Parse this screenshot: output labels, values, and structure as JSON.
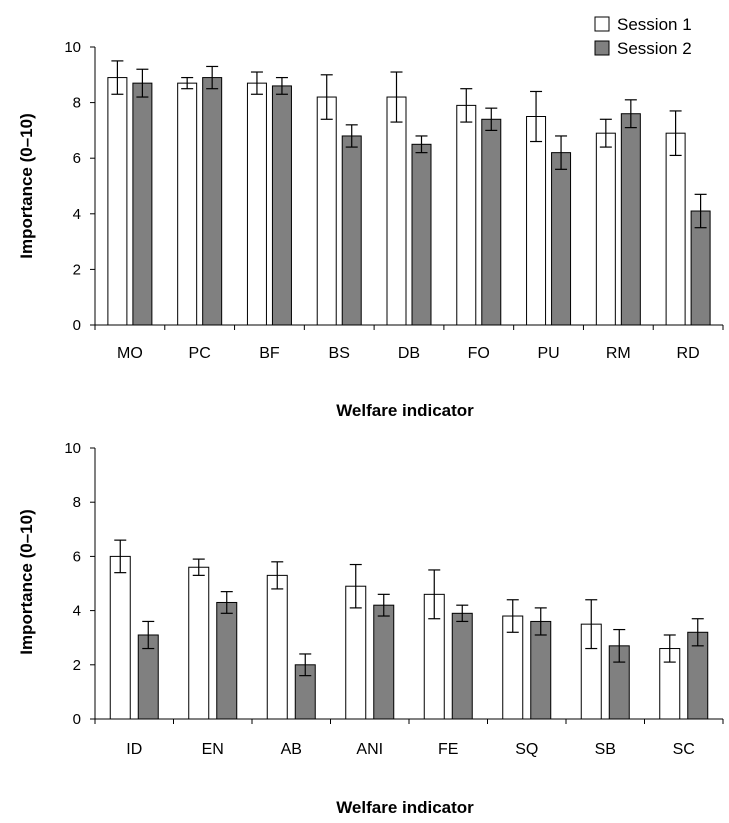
{
  "legend": {
    "position": "top-right",
    "items": [
      {
        "name": "Session 1",
        "color": "#ffffff"
      },
      {
        "name": "Session 2",
        "color": "#808080"
      }
    ]
  },
  "chart_data": [
    {
      "type": "bar",
      "categories": [
        "MO",
        "PC",
        "BF",
        "BS",
        "DB",
        "FO",
        "PU",
        "RM",
        "RD"
      ],
      "series": [
        {
          "name": "Session 1",
          "color": "#ffffff",
          "values": [
            8.9,
            8.7,
            8.7,
            8.2,
            8.2,
            7.9,
            7.5,
            6.9,
            6.9
          ],
          "error": [
            0.6,
            0.2,
            0.4,
            0.8,
            0.9,
            0.6,
            0.9,
            0.5,
            0.8
          ]
        },
        {
          "name": "Session 2",
          "color": "#808080",
          "values": [
            8.7,
            8.9,
            8.6,
            6.8,
            6.5,
            7.4,
            6.2,
            7.6,
            4.1
          ],
          "error": [
            0.5,
            0.4,
            0.3,
            0.4,
            0.3,
            0.4,
            0.6,
            0.5,
            0.6
          ]
        }
      ],
      "ylabel": "Importance (0–10)",
      "xlabel": "Welfare indicator",
      "ylim": [
        0,
        10
      ],
      "yticks": [
        "0",
        "2",
        "4",
        "6",
        "8",
        "10"
      ],
      "grid": false
    },
    {
      "type": "bar",
      "categories": [
        "ID",
        "EN",
        "AB",
        "ANI",
        "FE",
        "SQ",
        "SB",
        "SC"
      ],
      "series": [
        {
          "name": "Session 1",
          "color": "#ffffff",
          "values": [
            6.0,
            5.6,
            5.3,
            4.9,
            4.6,
            3.8,
            3.5,
            2.6
          ],
          "error": [
            0.6,
            0.3,
            0.5,
            0.8,
            0.9,
            0.6,
            0.9,
            0.5
          ]
        },
        {
          "name": "Session 2",
          "color": "#808080",
          "values": [
            3.1,
            4.3,
            2.0,
            4.2,
            3.9,
            3.6,
            2.7,
            3.2
          ],
          "error": [
            0.5,
            0.4,
            0.4,
            0.4,
            0.3,
            0.5,
            0.6,
            0.5
          ]
        }
      ],
      "ylabel": "Importance (0–10)",
      "xlabel": "Welfare indicator",
      "ylim": [
        0,
        10
      ],
      "yticks": [
        "0",
        "2",
        "4",
        "6",
        "8",
        "10"
      ],
      "grid": false
    }
  ]
}
